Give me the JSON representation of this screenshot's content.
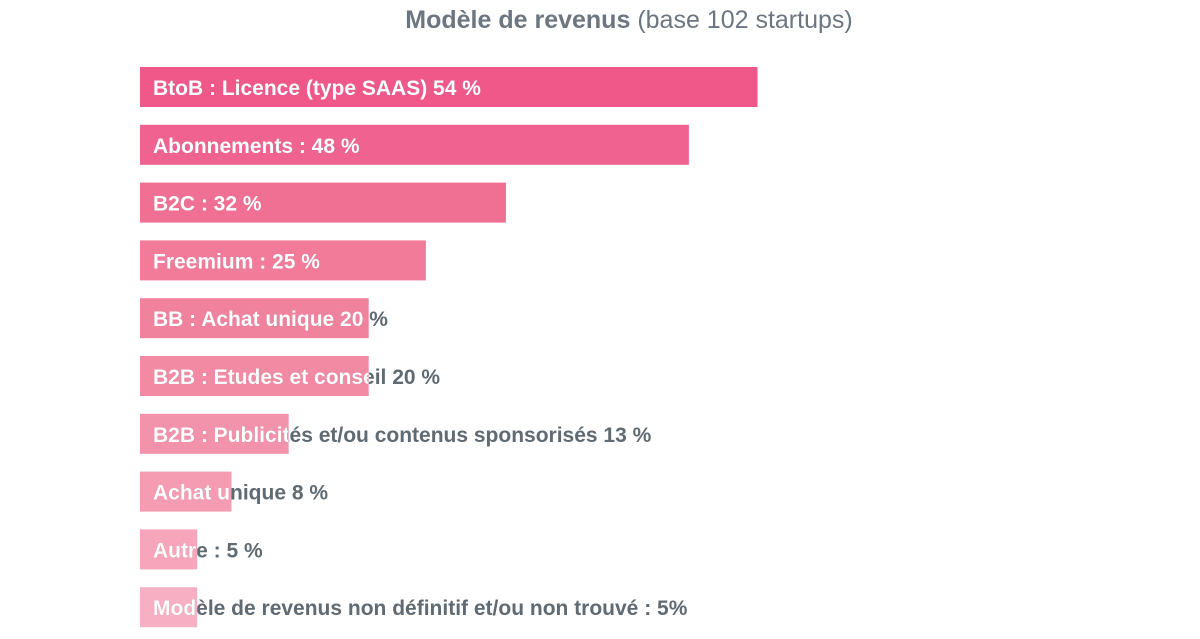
{
  "title": "Modèle de revenus",
  "subtitle": "(base 102 startups)",
  "colors": {
    "label_dark": "#5f6a73",
    "label_light": "#ffffff",
    "title": "#6c7680"
  },
  "chart_data": {
    "type": "bar",
    "orientation": "horizontal",
    "title": "Modèle de revenus",
    "subtitle": "(base 102 startups)",
    "categories": [
      "BtoB : Licence (type SAAS) 54 %",
      "Abonnements : 48 %",
      "B2C : 32 %",
      "Freemium : 25 %",
      "BB : Achat unique 20 %",
      "B2B : Etudes et conseil 20 %",
      "B2B : Publicités et/ou contenus sponsorisés 13 %",
      "Achat unique 8 %",
      "Autre : 5 %",
      "Modèle de revenus non définitif et/ou non trouvé : 5%"
    ],
    "values": [
      54,
      48,
      32,
      25,
      20,
      20,
      13,
      8,
      5,
      5
    ],
    "unit": "%",
    "colors": [
      "#f0588a",
      "#f0628f",
      "#f07094",
      "#f17b99",
      "#f1829d",
      "#f28aa3",
      "#f392ab",
      "#f59bb2",
      "#f6a5ba",
      "#f7b0c3"
    ],
    "xlim": [
      0,
      54
    ],
    "grid": false,
    "legend": "none"
  }
}
